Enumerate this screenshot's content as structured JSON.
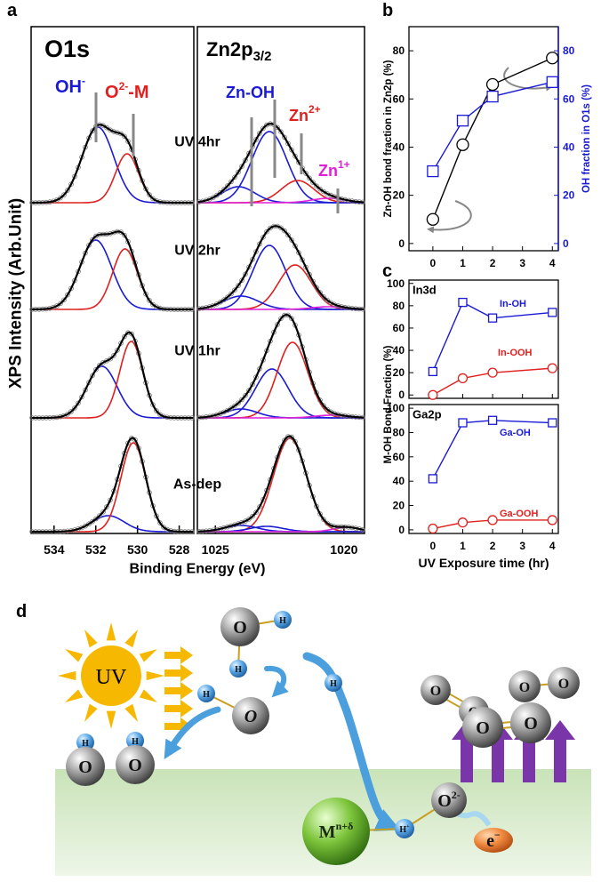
{
  "panel_labels": [
    "a",
    "b",
    "c",
    "d"
  ],
  "chart_data": [
    {
      "type": "spectra",
      "ylabel": "XPS Intensity (Arb.Unit)",
      "xlabel": "Binding Energy (eV)",
      "regions": [
        {
          "title": "O1s",
          "xlim": [
            535.1,
            527.3
          ],
          "xticks": [
            534,
            532,
            530,
            528
          ],
          "peak_labels": [
            {
              "text": "OH",
              "sup": "-",
              "color": "#1a1ad6"
            },
            {
              "text": "O",
              "sup": "2-",
              "suffix": "-M",
              "color": "#e0201e"
            }
          ]
        },
        {
          "title": "Zn2p",
          "title_sub": "3/2",
          "xlim": [
            1025.7,
            1019.2
          ],
          "xticks": [
            1025,
            1020
          ],
          "peak_labels": [
            {
              "text": "Zn-OH",
              "color": "#1a1ad6"
            },
            {
              "text": "Zn",
              "sup": "2+",
              "color": "#e0201e"
            },
            {
              "text": "Zn",
              "sup": "1+",
              "color": "#e01fd8"
            }
          ]
        }
      ],
      "spectra": [
        {
          "label": "UV 4hr",
          "peaks": [
            [
              {
                "center": 531.9,
                "fwhm": 1.8,
                "height": 0.85,
                "color": "#1a1ad6"
              },
              {
                "center": 530.5,
                "fwhm": 1.3,
                "height": 0.55,
                "color": "#e0201e"
              }
            ],
            [
              {
                "center": 1022.9,
                "fwhm": 1.6,
                "height": 0.8,
                "color": "#1a1ad6"
              },
              {
                "center": 1021.8,
                "fwhm": 1.5,
                "height": 0.25,
                "color": "#e0201e"
              },
              {
                "center": 1024.1,
                "fwhm": 1.5,
                "height": 0.18,
                "color": "#1a1ad6"
              },
              {
                "center": 1020.6,
                "fwhm": 1.5,
                "height": 0.05,
                "color": "#e01fd8"
              }
            ]
          ]
        },
        {
          "label": "UV 2hr",
          "peaks": [
            [
              {
                "center": 532.0,
                "fwhm": 1.8,
                "height": 0.78,
                "color": "#1a1ad6"
              },
              {
                "center": 530.6,
                "fwhm": 1.4,
                "height": 0.68,
                "color": "#e0201e"
              }
            ],
            [
              {
                "center": 1022.9,
                "fwhm": 1.5,
                "height": 0.72,
                "color": "#1a1ad6"
              },
              {
                "center": 1021.9,
                "fwhm": 1.5,
                "height": 0.5,
                "color": "#e0201e"
              },
              {
                "center": 1024.0,
                "fwhm": 1.6,
                "height": 0.15,
                "color": "#1a1ad6"
              },
              {
                "center": 1020.6,
                "fwhm": 1.5,
                "height": 0.03,
                "color": "#e01fd8"
              }
            ]
          ]
        },
        {
          "label": "UV 1hr",
          "peaks": [
            [
              {
                "center": 531.7,
                "fwhm": 1.7,
                "height": 0.58,
                "color": "#1a1ad6"
              },
              {
                "center": 530.3,
                "fwhm": 1.3,
                "height": 0.86,
                "color": "#e0201e"
              }
            ],
            [
              {
                "center": 1022.8,
                "fwhm": 1.5,
                "height": 0.55,
                "color": "#1a1ad6"
              },
              {
                "center": 1022.0,
                "fwhm": 1.4,
                "height": 0.85,
                "color": "#e0201e"
              },
              {
                "center": 1024.0,
                "fwhm": 1.5,
                "height": 0.1,
                "color": "#1a1ad6"
              },
              {
                "center": 1020.5,
                "fwhm": 1.5,
                "height": 0.03,
                "color": "#e01fd8"
              }
            ]
          ]
        },
        {
          "label": "As-dep",
          "peaks": [
            [
              {
                "center": 531.4,
                "fwhm": 1.8,
                "height": 0.18,
                "color": "#1a1ad6"
              },
              {
                "center": 530.2,
                "fwhm": 1.4,
                "height": 1.0,
                "color": "#e0201e"
              }
            ],
            [
              {
                "center": 1022.1,
                "fwhm": 1.5,
                "height": 1.05,
                "color": "#e0201e"
              },
              {
                "center": 1024.0,
                "fwhm": 1.5,
                "height": 0.07,
                "color": "#1a1ad6"
              },
              {
                "center": 1023.0,
                "fwhm": 1.5,
                "height": 0.06,
                "color": "#1a1ad6"
              },
              {
                "center": 1019.9,
                "fwhm": 1.2,
                "height": 0.05,
                "color": "#e01fd8"
              }
            ]
          ]
        }
      ]
    },
    {
      "type": "line",
      "ylabel": "Zn-OH bond fraction in Zn2p (%)",
      "y2label": "OH fraction in O1s (%)",
      "x": [
        0,
        1,
        2,
        4
      ],
      "xlim": [
        -0.8,
        4.2
      ],
      "xticks": [
        0,
        1,
        2,
        3,
        4
      ],
      "ylim": [
        -3,
        90
      ],
      "yticks": [
        0,
        20,
        40,
        60,
        80
      ],
      "y2lim": [
        -3,
        90
      ],
      "y2ticks": [
        0,
        20,
        40,
        60,
        80
      ],
      "y2color": "#1a1ad6",
      "series": [
        {
          "color": "#000000",
          "marker": "circle",
          "values": [
            10,
            41,
            66,
            77
          ]
        },
        {
          "color": "#1a1ad6",
          "marker": "square",
          "axis": "y2",
          "values": [
            30,
            51,
            61,
            67
          ]
        }
      ]
    },
    {
      "type": "line",
      "title": "In3d",
      "ylabel": "M-OH Bond Fraction (%)",
      "x": [
        0,
        1,
        2,
        4
      ],
      "xlim": [
        -0.8,
        4.2
      ],
      "ylim": [
        -3,
        103
      ],
      "yticks": [
        0,
        20,
        40,
        60,
        80,
        100
      ],
      "series": [
        {
          "name": "In-OH",
          "color": "#1a1ad6",
          "marker": "square",
          "values": [
            21,
            83,
            69,
            74
          ]
        },
        {
          "name": "In-OOH",
          "color": "#e0201e",
          "marker": "circle",
          "values": [
            0,
            15,
            20,
            24
          ]
        }
      ]
    },
    {
      "type": "line",
      "title": "Ga2p",
      "xlabel": "UV Exposure time (hr)",
      "x": [
        0,
        1,
        2,
        4
      ],
      "xlim": [
        -0.8,
        4.2
      ],
      "xticks": [
        0,
        1,
        2,
        3,
        4
      ],
      "ylim": [
        -3,
        103
      ],
      "yticks": [
        0,
        20,
        40,
        60,
        80,
        100
      ],
      "series": [
        {
          "name": "Ga-OH",
          "color": "#1a1ad6",
          "marker": "square",
          "values": [
            42,
            88,
            90,
            88
          ]
        },
        {
          "name": "Ga-OOH",
          "color": "#e0201e",
          "marker": "circle",
          "values": [
            1,
            6,
            8,
            8
          ]
        }
      ]
    }
  ],
  "diagram": {
    "sun": "UV",
    "atoms": [
      {
        "text": "O"
      },
      {
        "text": "H"
      },
      {
        "text": "H"
      },
      {
        "text": "H"
      },
      {
        "text": "O"
      },
      {
        "text": "H"
      },
      {
        "text": "H"
      },
      {
        "text": "O"
      },
      {
        "text": "H"
      },
      {
        "text": "O"
      },
      {
        "text": "O"
      },
      {
        "text": "O"
      },
      {
        "text": "O"
      },
      {
        "text": "O"
      },
      {
        "text": "O"
      },
      {
        "text": "O"
      },
      {
        "text": "M",
        "sup": "n+δ"
      },
      {
        "text": "H",
        "sup": "+"
      },
      {
        "text": "O",
        "sup": "2-"
      },
      {
        "text": "e",
        "sup": "−"
      }
    ]
  }
}
